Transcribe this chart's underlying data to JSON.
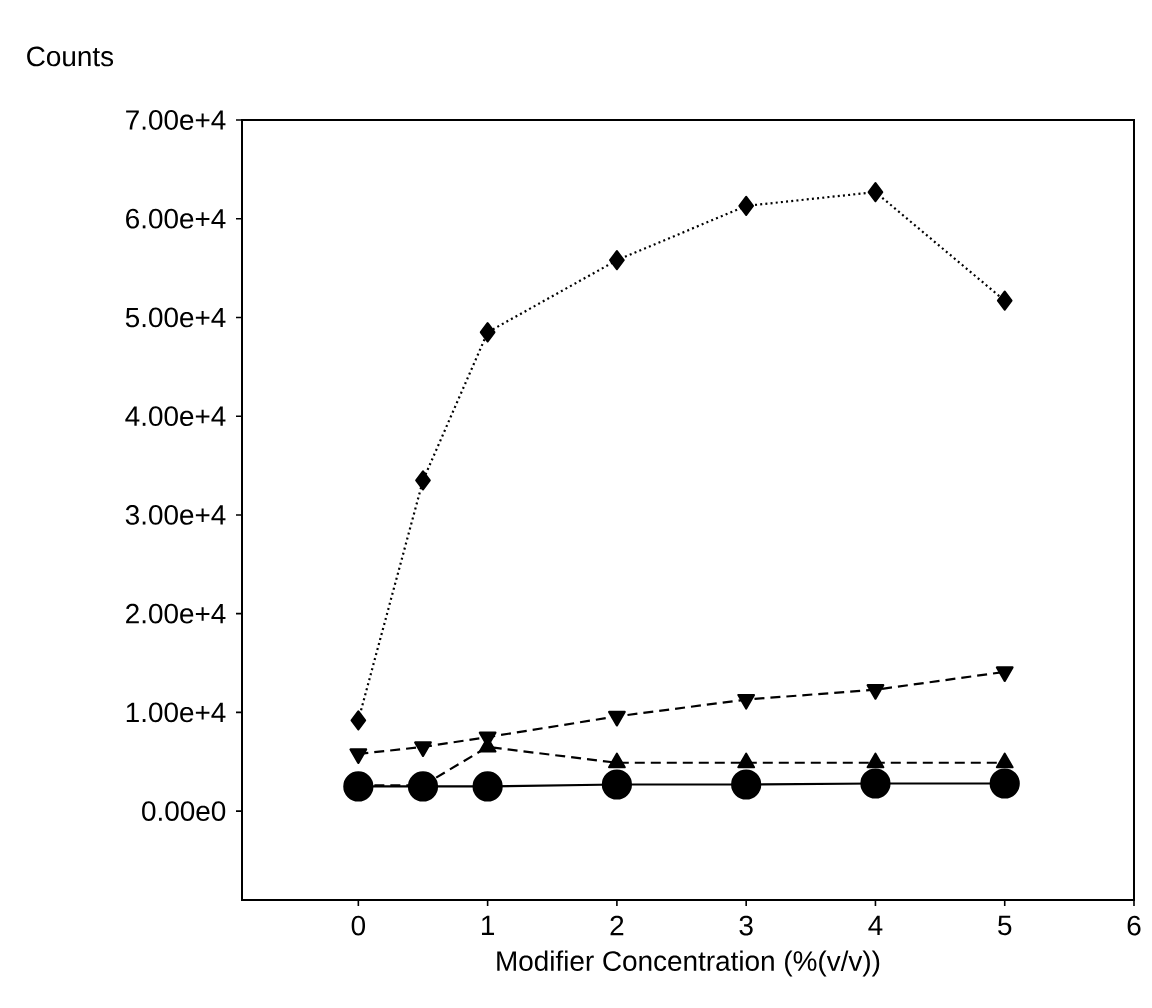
{
  "chart_data": {
    "type": "line",
    "x": [
      0,
      0.5,
      1,
      2,
      3,
      4,
      5
    ],
    "xlabel": "Modifier Concentration (%(v/v))",
    "ylabel": "Counts",
    "xlim": [
      -0.9,
      6
    ],
    "ylim": [
      -9000,
      70000
    ],
    "xticks": [
      0,
      1,
      2,
      3,
      4,
      5,
      6
    ],
    "yticks": [
      {
        "value": 0,
        "label": "0.00e0"
      },
      {
        "value": 10000,
        "label": "1.00e+4"
      },
      {
        "value": 20000,
        "label": "2.00e+4"
      },
      {
        "value": 30000,
        "label": "3.00e+4"
      },
      {
        "value": 40000,
        "label": "4.00e+4"
      },
      {
        "value": 50000,
        "label": "5.00e+4"
      },
      {
        "value": 60000,
        "label": "6.00e+4"
      },
      {
        "value": 70000,
        "label": "7.00e+4"
      }
    ],
    "series": [
      {
        "color": "#000000",
        "marker": "diamond",
        "line_style": "dotted",
        "values": [
          9200,
          33500,
          48500,
          55800,
          61300,
          62700,
          51700
        ]
      },
      {
        "color": "#000000",
        "marker": "triangle-down",
        "line_style": "dashed",
        "values": [
          5800,
          6500,
          7500,
          9600,
          11300,
          12300,
          14100
        ]
      },
      {
        "color": "#000000",
        "marker": "triangle",
        "line_style": "dashed",
        "values": [
          2600,
          2600,
          6500,
          4900,
          4900,
          4900,
          4900
        ]
      },
      {
        "color": "#000000",
        "marker": "circle",
        "line_style": "solid",
        "values": [
          2500,
          2500,
          2500,
          2700,
          2700,
          2800,
          2800
        ]
      }
    ]
  }
}
